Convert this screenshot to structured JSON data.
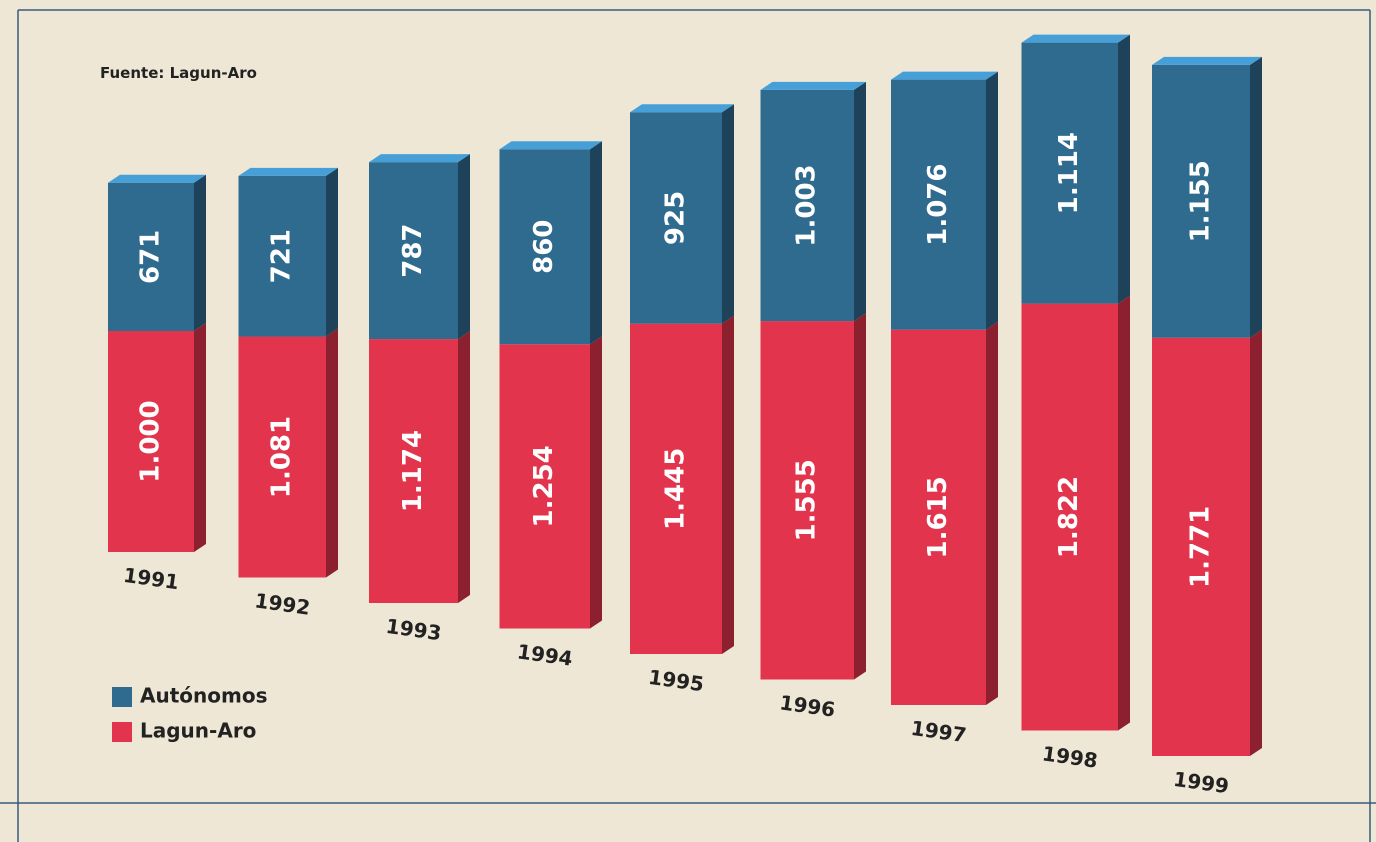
{
  "chart_data": {
    "type": "bar",
    "stacked": true,
    "source": "Fuente: Lagun-Aro",
    "categories": [
      "1991",
      "1992",
      "1993",
      "1994",
      "1995",
      "1996",
      "1997",
      "1998",
      "1999"
    ],
    "series": [
      {
        "name": "Autónomos",
        "color": "#2f6a8f",
        "values": [
          671,
          721,
          787,
          860,
          925,
          1003,
          1076,
          1114,
          1155
        ],
        "value_labels": [
          "671",
          "721",
          "787",
          "860",
          "925",
          "1.003",
          "1.076",
          "1.114",
          "1.155"
        ]
      },
      {
        "name": "Lagun-Aro",
        "color": "#e2344c",
        "values": [
          1000,
          1081,
          1174,
          1254,
          1445,
          1555,
          1615,
          1822,
          1771
        ],
        "value_labels": [
          "1.000",
          "1.081",
          "1.174",
          "1.254",
          "1.445",
          "1.555",
          "1.615",
          "1.822",
          "1.771"
        ]
      }
    ]
  }
}
